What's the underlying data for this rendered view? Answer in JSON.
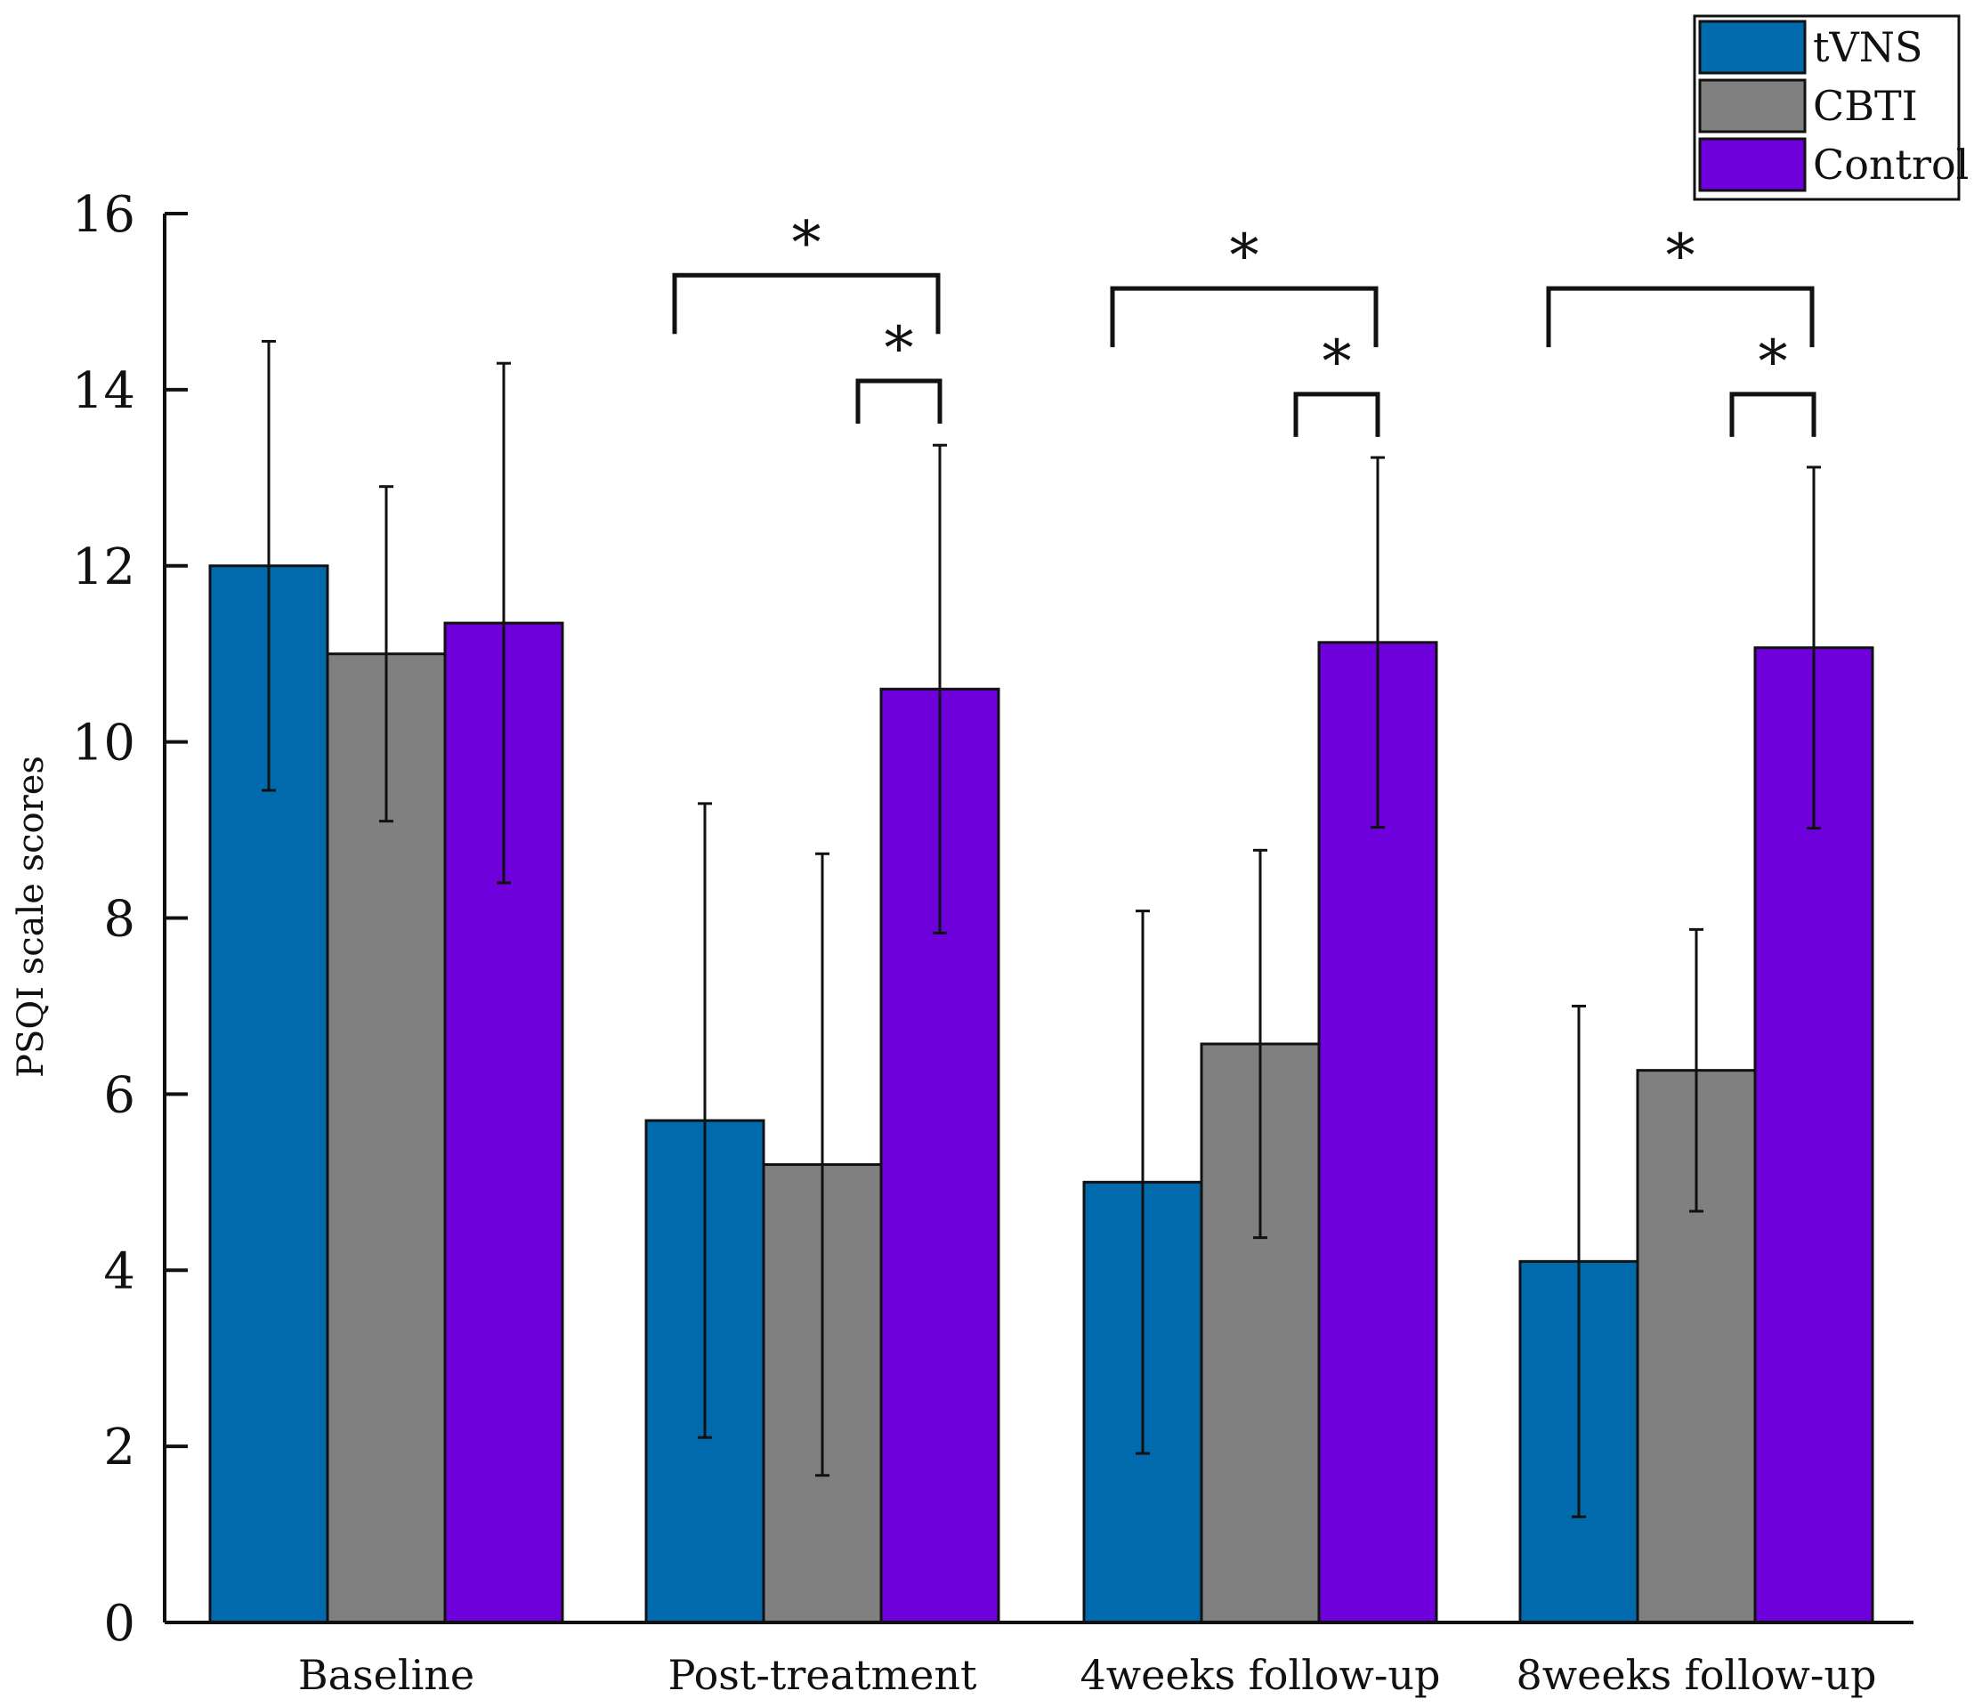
{
  "chart_data": {
    "type": "bar",
    "title": "",
    "xlabel": "",
    "ylabel": "PSQI scale scores",
    "ylim": [
      0,
      16
    ],
    "yticks": [
      0,
      2,
      4,
      6,
      8,
      10,
      12,
      14,
      16
    ],
    "grid": false,
    "legend_position": "top-right",
    "categories": [
      "Baseline",
      "Post-treatment",
      "4weeks follow-up",
      "8weeks follow-up"
    ],
    "series": [
      {
        "name": "tVNS",
        "color": "#006aad",
        "values": [
          12.0,
          5.7,
          5.0,
          4.1
        ],
        "errors": [
          2.55,
          3.6,
          3.08,
          2.9
        ]
      },
      {
        "name": "CBTI",
        "color": "#808080",
        "values": [
          11.0,
          5.2,
          6.57,
          6.27
        ],
        "errors": [
          1.9,
          3.53,
          2.2,
          1.6
        ]
      },
      {
        "name": "Control",
        "color": "#6e00db",
        "values": [
          11.35,
          10.6,
          11.13,
          11.07
        ],
        "errors": [
          2.95,
          2.77,
          2.1,
          2.05
        ]
      }
    ],
    "significance": [
      {
        "category": 1,
        "from": "tVNS",
        "to": "Control",
        "level": 15.3,
        "label": "*"
      },
      {
        "category": 1,
        "from": "CBTI",
        "to": "Control",
        "level": 14.1,
        "label": "*"
      },
      {
        "category": 2,
        "from": "tVNS",
        "to": "Control",
        "level": 15.15,
        "label": "*"
      },
      {
        "category": 2,
        "from": "CBTI",
        "to": "Control",
        "level": 13.95,
        "label": "*"
      },
      {
        "category": 3,
        "from": "tVNS",
        "to": "Control",
        "level": 15.15,
        "label": "*"
      },
      {
        "category": 3,
        "from": "CBTI",
        "to": "Control",
        "level": 13.95,
        "label": "*"
      }
    ]
  }
}
